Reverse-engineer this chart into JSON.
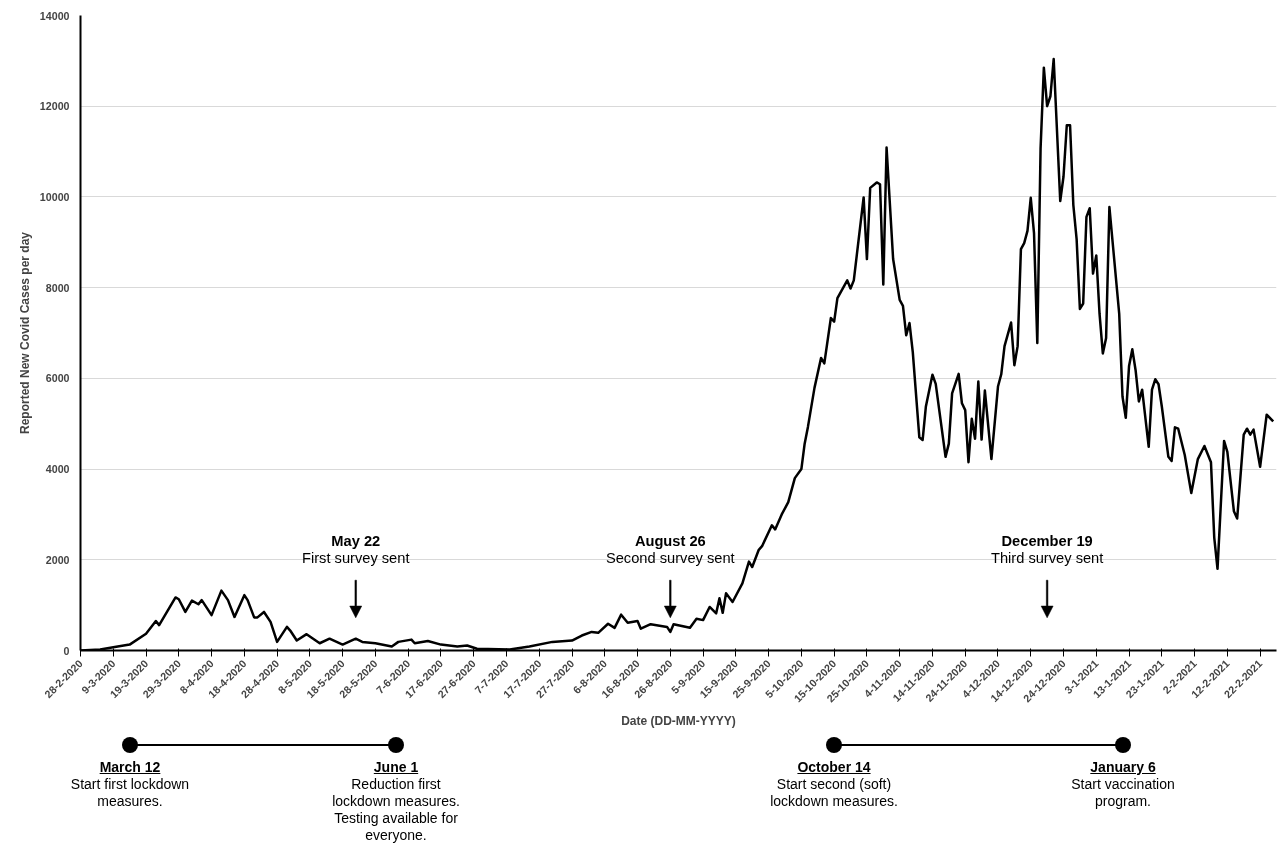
{
  "chart_data": {
    "type": "line",
    "xlabel": "Date (DD-MM-YYYY)",
    "ylabel": "Reported New Covid Cases per day",
    "x": [
      "2020-02-28",
      "2020-03-05",
      "2020-03-09",
      "2020-03-14",
      "2020-03-19",
      "2020-03-22",
      "2020-03-23",
      "2020-03-28",
      "2020-03-29",
      "2020-03-31",
      "2020-04-02",
      "2020-04-04",
      "2020-04-05",
      "2020-04-08",
      "2020-04-11",
      "2020-04-13",
      "2020-04-15",
      "2020-04-18",
      "2020-04-19",
      "2020-04-21",
      "2020-04-22",
      "2020-04-24",
      "2020-04-26",
      "2020-04-28",
      "2020-05-01",
      "2020-05-02",
      "2020-05-04",
      "2020-05-07",
      "2020-05-11",
      "2020-05-14",
      "2020-05-18",
      "2020-05-22",
      "2020-05-24",
      "2020-05-28",
      "2020-06-02",
      "2020-06-04",
      "2020-06-08",
      "2020-06-09",
      "2020-06-13",
      "2020-06-17",
      "2020-06-22",
      "2020-06-25",
      "2020-06-28",
      "2020-07-08",
      "2020-07-14",
      "2020-07-21",
      "2020-07-27",
      "2020-07-30",
      "2020-08-02",
      "2020-08-04",
      "2020-08-07",
      "2020-08-09",
      "2020-08-11",
      "2020-08-13",
      "2020-08-16",
      "2020-08-17",
      "2020-08-20",
      "2020-08-25",
      "2020-08-26",
      "2020-08-27",
      "2020-09-01",
      "2020-09-03",
      "2020-09-05",
      "2020-09-07",
      "2020-09-09",
      "2020-09-10",
      "2020-09-11",
      "2020-09-12",
      "2020-09-14",
      "2020-09-17",
      "2020-09-19",
      "2020-09-20",
      "2020-09-22",
      "2020-09-23",
      "2020-09-26",
      "2020-09-27",
      "2020-09-29",
      "2020-10-01",
      "2020-10-03",
      "2020-10-05",
      "2020-10-06",
      "2020-10-07",
      "2020-10-09",
      "2020-10-11",
      "2020-10-12",
      "2020-10-14",
      "2020-10-15",
      "2020-10-16",
      "2020-10-19",
      "2020-10-20",
      "2020-10-21",
      "2020-10-24",
      "2020-10-25",
      "2020-10-26",
      "2020-10-28",
      "2020-10-29",
      "2020-10-30",
      "2020-10-31",
      "2020-11-02",
      "2020-11-04",
      "2020-11-05",
      "2020-11-06",
      "2020-11-07",
      "2020-11-08",
      "2020-11-10",
      "2020-11-11",
      "2020-11-12",
      "2020-11-14",
      "2020-11-15",
      "2020-11-18",
      "2020-11-19",
      "2020-11-20",
      "2020-11-22",
      "2020-11-23",
      "2020-11-24",
      "2020-11-25",
      "2020-11-26",
      "2020-11-27",
      "2020-11-28",
      "2020-11-29",
      "2020-11-30",
      "2020-12-02",
      "2020-12-04",
      "2020-12-05",
      "2020-12-06",
      "2020-12-08",
      "2020-12-09",
      "2020-12-10",
      "2020-12-11",
      "2020-12-12",
      "2020-12-13",
      "2020-12-14",
      "2020-12-15",
      "2020-12-16",
      "2020-12-17",
      "2020-12-18",
      "2020-12-19",
      "2020-12-20",
      "2020-12-21",
      "2020-12-23",
      "2020-12-24",
      "2020-12-25",
      "2020-12-26",
      "2020-12-27",
      "2020-12-28",
      "2020-12-29",
      "2020-12-30",
      "2020-12-31",
      "2021-01-01",
      "2021-01-02",
      "2021-01-03",
      "2021-01-04",
      "2021-01-05",
      "2021-01-06",
      "2021-01-07",
      "2021-01-10",
      "2021-01-11",
      "2021-01-12",
      "2021-01-13",
      "2021-01-14",
      "2021-01-15",
      "2021-01-16",
      "2021-01-17",
      "2021-01-19",
      "2021-01-20",
      "2021-01-21",
      "2021-01-22",
      "2021-01-23",
      "2021-01-25",
      "2021-01-26",
      "2021-01-27",
      "2021-01-28",
      "2021-01-30",
      "2021-02-01",
      "2021-02-03",
      "2021-02-05",
      "2021-02-07",
      "2021-02-08",
      "2021-02-09",
      "2021-02-11",
      "2021-02-12",
      "2021-02-14",
      "2021-02-15",
      "2021-02-17",
      "2021-02-18",
      "2021-02-19",
      "2021-02-20",
      "2021-02-22",
      "2021-02-24",
      "2021-02-26"
    ],
    "series": [
      {
        "color": "#000000",
        "values": [
          0,
          20,
          70,
          130,
          370,
          650,
          560,
          1170,
          1130,
          850,
          1100,
          1020,
          1110,
          780,
          1320,
          1110,
          740,
          1220,
          1110,
          730,
          730,
          850,
          630,
          190,
          520,
          440,
          220,
          360,
          160,
          260,
          130,
          260,
          190,
          160,
          90,
          190,
          240,
          160,
          210,
          130,
          90,
          110,
          40,
          20,
          90,
          190,
          220,
          330,
          410,
          390,
          590,
          500,
          790,
          610,
          650,
          480,
          580,
          520,
          410,
          580,
          500,
          700,
          670,
          960,
          820,
          1150,
          830,
          1260,
          1070,
          1480,
          1960,
          1840,
          2220,
          2300,
          2760,
          2670,
          3000,
          3270,
          3800,
          4000,
          4560,
          4930,
          5790,
          6450,
          6330,
          7330,
          7250,
          7770,
          8160,
          7980,
          8160,
          9990,
          8630,
          10200,
          10320,
          10280,
          8070,
          11090,
          8630,
          7730,
          7600,
          6950,
          7220,
          6580,
          4700,
          4640,
          5380,
          6080,
          5880,
          4270,
          4560,
          5670,
          6100,
          5450,
          5300,
          4150,
          5110,
          4670,
          5930,
          4650,
          5730,
          4220,
          5820,
          6090,
          6710,
          7230,
          6290,
          6710,
          8850,
          8980,
          9250,
          9980,
          9200,
          6780,
          11070,
          12850,
          12000,
          12220,
          13040,
          9910,
          10450,
          11580,
          11580,
          9820,
          9070,
          7530,
          7650,
          9560,
          9750,
          8310,
          8710,
          7420,
          6550,
          6890,
          9780,
          7420,
          5600,
          5130,
          6270,
          6640,
          6180,
          5490,
          5750,
          4490,
          5750,
          5980,
          5870,
          5380,
          4270,
          4180,
          4920,
          4890,
          4310,
          3470,
          4220,
          4510,
          4150,
          2490,
          1800,
          4620,
          4380,
          3070,
          2910,
          4760,
          4890,
          4760,
          4870,
          4050,
          5200,
          5050
        ]
      }
    ],
    "xlim": [
      "2020-02-28",
      "2021-02-27"
    ],
    "ylim": [
      0,
      14000
    ],
    "yticks": [
      0,
      2000,
      4000,
      6000,
      8000,
      10000,
      12000,
      14000
    ],
    "xticks": [
      {
        "value": "2020-02-28",
        "label": "28-2-2020"
      },
      {
        "value": "2020-03-09",
        "label": "9-3-2020"
      },
      {
        "value": "2020-03-19",
        "label": "19-3-2020"
      },
      {
        "value": "2020-03-29",
        "label": "29-3-2020"
      },
      {
        "value": "2020-04-08",
        "label": "8-4-2020"
      },
      {
        "value": "2020-04-18",
        "label": "18-4-2020"
      },
      {
        "value": "2020-04-28",
        "label": "28-4-2020"
      },
      {
        "value": "2020-05-08",
        "label": "8-5-2020"
      },
      {
        "value": "2020-05-18",
        "label": "18-5-2020"
      },
      {
        "value": "2020-05-28",
        "label": "28-5-2020"
      },
      {
        "value": "2020-06-07",
        "label": "7-6-2020"
      },
      {
        "value": "2020-06-17",
        "label": "17-6-2020"
      },
      {
        "value": "2020-06-27",
        "label": "27-6-2020"
      },
      {
        "value": "2020-07-07",
        "label": "7-7-2020"
      },
      {
        "value": "2020-07-17",
        "label": "17-7-2020"
      },
      {
        "value": "2020-07-27",
        "label": "27-7-2020"
      },
      {
        "value": "2020-08-06",
        "label": "6-8-2020"
      },
      {
        "value": "2020-08-16",
        "label": "16-8-2020"
      },
      {
        "value": "2020-08-26",
        "label": "26-8-2020"
      },
      {
        "value": "2020-09-05",
        "label": "5-9-2020"
      },
      {
        "value": "2020-09-15",
        "label": "15-9-2020"
      },
      {
        "value": "2020-09-25",
        "label": "25-9-2020"
      },
      {
        "value": "2020-10-05",
        "label": "5-10-2020"
      },
      {
        "value": "2020-10-15",
        "label": "15-10-2020"
      },
      {
        "value": "2020-10-25",
        "label": "25-10-2020"
      },
      {
        "value": "2020-11-04",
        "label": "4-11-2020"
      },
      {
        "value": "2020-11-14",
        "label": "14-11-2020"
      },
      {
        "value": "2020-11-24",
        "label": "24-11-2020"
      },
      {
        "value": "2020-12-04",
        "label": "4-12-2020"
      },
      {
        "value": "2020-12-14",
        "label": "14-12-2020"
      },
      {
        "value": "2020-12-24",
        "label": "24-12-2020"
      },
      {
        "value": "2021-01-03",
        "label": "3-1-2021"
      },
      {
        "value": "2021-01-13",
        "label": "13-1-2021"
      },
      {
        "value": "2021-01-23",
        "label": "23-1-2021"
      },
      {
        "value": "2021-02-02",
        "label": "2-2-2021"
      },
      {
        "value": "2021-02-12",
        "label": "12-2-2021"
      },
      {
        "value": "2021-02-22",
        "label": "22-2-2021"
      }
    ],
    "grid": "y",
    "marker": "none",
    "line_style": "solid",
    "ref_lines": [
      {
        "axis": "x",
        "value": "2020-05-22",
        "label": "May 22\nFirst survey sent"
      },
      {
        "axis": "x",
        "value": "2020-08-26",
        "label": "August 26\nSecond survey sent"
      },
      {
        "axis": "x",
        "value": "2020-12-19",
        "label": "December 19\nThird survey sent"
      }
    ],
    "annotations": [
      "March 12\nStart first lockdown\nmeasures.",
      "June 1\nReduction first\nlockdown measures.\nTesting available for\neveryone.",
      "October 14\nStart second (soft)\nlockdown measures.",
      "January 6\nStart vaccination\nprogram."
    ]
  }
}
